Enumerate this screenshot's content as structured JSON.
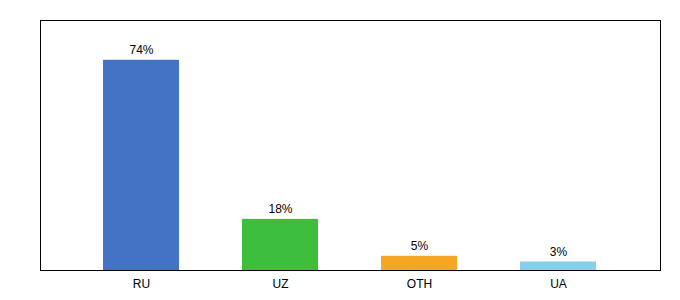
{
  "chart_data": {
    "type": "bar",
    "categories": [
      "RU",
      "UZ",
      "OTH",
      "UA"
    ],
    "values": [
      74,
      18,
      5,
      3
    ],
    "value_labels": [
      "74%",
      "18%",
      "5%",
      "3%"
    ],
    "data_labels": true,
    "colors": [
      "#4472c4",
      "#3dbf3d",
      "#f5a623",
      "#87ceeb"
    ],
    "ylim": [
      0,
      88
    ],
    "grid": false,
    "tick_labels": "x"
  }
}
